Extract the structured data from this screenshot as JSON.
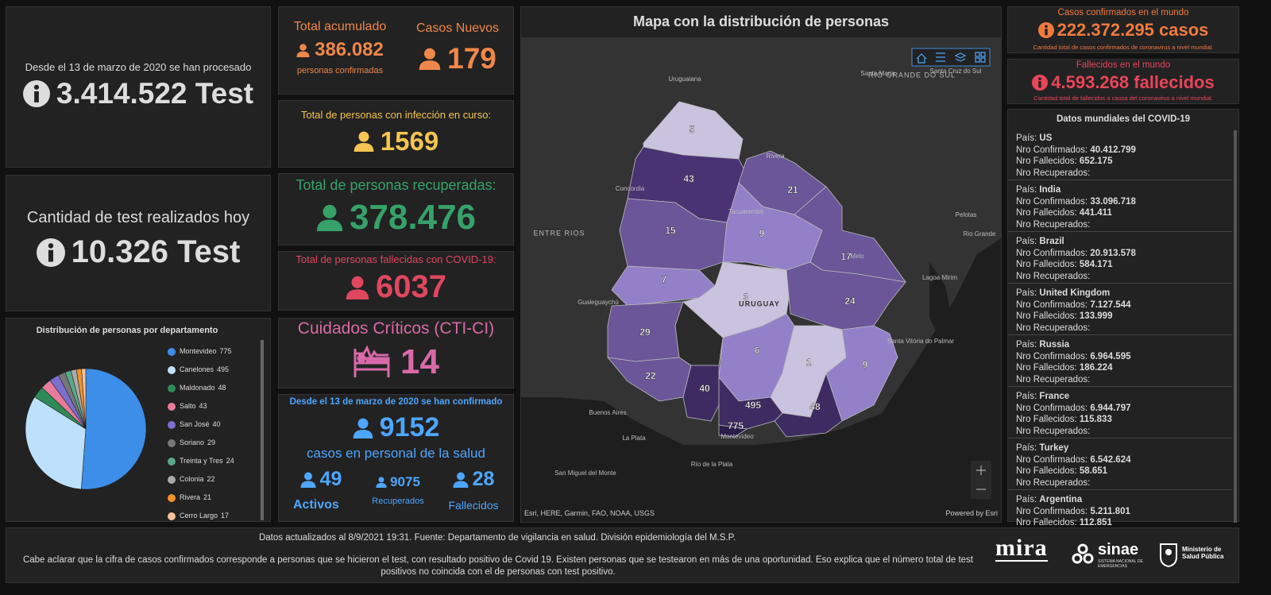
{
  "tests_total": {
    "caption": "Desde el 13 de marzo de 2020 se han procesado",
    "value": "3.414.522 Test"
  },
  "tests_today": {
    "caption": "Cantidad de test realizados hoy",
    "value": "10.326 Test"
  },
  "chart_data": {
    "type": "pie",
    "title": "Distribución de personas por departamento",
    "categories": [
      "Montevideo",
      "Canelones",
      "Maldonado",
      "Salto",
      "San José",
      "Soriano",
      "Treinta y Tres",
      "Colonia",
      "Rivera",
      "Cerro Largo"
    ],
    "values": [
      775,
      495,
      48,
      43,
      40,
      29,
      24,
      22,
      21,
      17
    ],
    "colors": [
      "#3d8ee8",
      "#bde0fb",
      "#2e8b57",
      "#e87b9a",
      "#7b6fd0",
      "#777777",
      "#5aa88a",
      "#aaaaaa",
      "#f0922b",
      "#f6c29b"
    ]
  },
  "accumulated": {
    "title": "Total acumulado",
    "value": "386.082",
    "caption": "personas confirmadas"
  },
  "new_cases": {
    "title": "Casos Nuevos",
    "value": "179"
  },
  "active": {
    "title": "Total de personas con infección en curso:",
    "value": "1569"
  },
  "recovered": {
    "title": "Total de personas recuperadas:",
    "value": "378.476"
  },
  "deceased": {
    "title": "Total de personas fallecidas con COVID-19:",
    "value": "6037"
  },
  "critical": {
    "title": "Cuidados Críticos (CTI-CI)",
    "value": "14"
  },
  "health_staff": {
    "caption": "Desde el 13 de marzo de 2020 se han confirmado",
    "value": "9152",
    "subtitle": "casos en personal de la salud",
    "active": {
      "value": "49",
      "label": "Activos"
    },
    "recovered": {
      "value": "9075",
      "label": "Recuperados"
    },
    "deceased": {
      "value": "28",
      "label": "Fallecidos"
    }
  },
  "map": {
    "title": "Mapa con la distribución de personas",
    "places": [
      "Uruguaiana",
      "Santa Maria",
      "RIO GRANDE DO SUL",
      "Santa Cruz do Sul",
      "Rivera",
      "Concordia",
      "Tacuarembó",
      "ENTRE RIOS",
      "Pelotas",
      "Rio Grande",
      "Melo",
      "Lagoa Mirim",
      "Gualeguaychú",
      "URUGUAY",
      "Santa Vitória do Palmar",
      "Buenos Aires",
      "La Plata",
      "Montevideo",
      "San Miguel del Monte",
      "Río de la Plata"
    ],
    "department_counts": [
      "5",
      "43",
      "21",
      "15",
      "9",
      "17",
      "7",
      "3",
      "24",
      "29",
      "6",
      "1",
      "9",
      "22",
      "40",
      "495",
      "48",
      "775"
    ],
    "attribution": "Esri, HERE, Garmin, FAO, NOAA, USGS",
    "powered": "Powered by Esri"
  },
  "world_cases": {
    "title": "Casos confirmados en el mundo",
    "value": "222.372.295 casos",
    "caption": "Cantidad total de casos confirmados de coronavirus a nivel mundial."
  },
  "world_deaths": {
    "title": "Fallecidos en el mundo",
    "value": "4.593.268 fallecidos",
    "caption": "Cantidad total de fallecidos a causa del coronavirus a nivel mundial."
  },
  "world_list": {
    "title": "Datos mundiales del COVID-19",
    "labels": {
      "country": "País:",
      "confirmed": "Nro Confirmados:",
      "deaths": "Nro Fallecidos:",
      "recovered": "Nro Recuperados:"
    },
    "rows": [
      {
        "country": "US",
        "confirmed": "40.412.799",
        "deaths": "652.175"
      },
      {
        "country": "India",
        "confirmed": "33.096.718",
        "deaths": "441.411"
      },
      {
        "country": "Brazil",
        "confirmed": "20.913.578",
        "deaths": "584.171"
      },
      {
        "country": "United Kingdom",
        "confirmed": "7.127.544",
        "deaths": "133.999"
      },
      {
        "country": "Russia",
        "confirmed": "6.964.595",
        "deaths": "186.224"
      },
      {
        "country": "France",
        "confirmed": "6.944.797",
        "deaths": "115.833"
      },
      {
        "country": "Turkey",
        "confirmed": "6.542.624",
        "deaths": "58.651"
      },
      {
        "country": "Argentina",
        "confirmed": "5.211.801",
        "deaths": "112.851"
      }
    ]
  },
  "footer": {
    "updated": "Datos actualizados al 8/9/2021 19:31. Fuente: Departamento de vigilancia en salud. División epidemiología del M.S.P.",
    "note": "Cabe aclarar que la cifra de casos confirmados corresponde a personas que se hicieron el test, con resultado positivo de Covid 19. Existen personas que se testearon en más de una oportunidad. Eso explica que el número total de test positivos no coincida con el de personas con test positivo.",
    "logo_mira": "mira",
    "logo_sinae": "sinae",
    "sinae_caption": "SISTEMA NACIONAL DE EMERGENCIAS",
    "ministry": "Ministerio de Salud Pública"
  }
}
